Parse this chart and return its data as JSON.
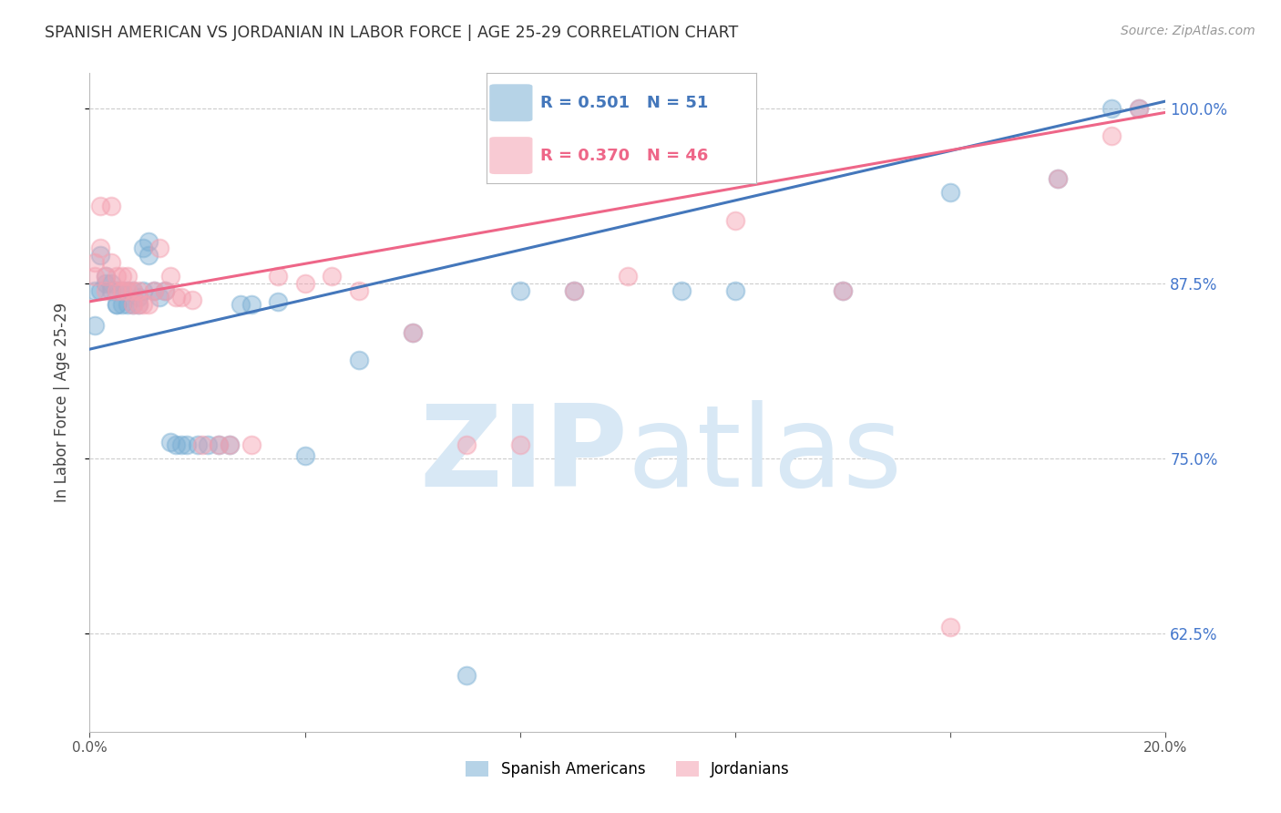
{
  "title": "SPANISH AMERICAN VS JORDANIAN IN LABOR FORCE | AGE 25-29 CORRELATION CHART",
  "source": "Source: ZipAtlas.com",
  "ylabel": "In Labor Force | Age 25-29",
  "xlim": [
    0.0,
    0.2
  ],
  "ylim": [
    0.555,
    1.025
  ],
  "ytick_positions": [
    0.625,
    0.75,
    0.875,
    1.0
  ],
  "yticklabels": [
    "62.5%",
    "75.0%",
    "87.5%",
    "100.0%"
  ],
  "blue_R": 0.501,
  "blue_N": 51,
  "pink_R": 0.37,
  "pink_N": 46,
  "blue_color": "#7BAFD4",
  "pink_color": "#F4A0B0",
  "blue_line_color": "#4477BB",
  "pink_line_color": "#EE6688",
  "watermark_color": "#D8E8F5",
  "legend_label_blue": "Spanish Americans",
  "legend_label_pink": "Jordanians",
  "blue_x": [
    0.001,
    0.001,
    0.002,
    0.002,
    0.003,
    0.003,
    0.004,
    0.004,
    0.005,
    0.005,
    0.005,
    0.006,
    0.006,
    0.007,
    0.007,
    0.008,
    0.008,
    0.009,
    0.009,
    0.01,
    0.01,
    0.011,
    0.011,
    0.012,
    0.013,
    0.014,
    0.015,
    0.016,
    0.017,
    0.018,
    0.02,
    0.022,
    0.024,
    0.026,
    0.028,
    0.03,
    0.035,
    0.04,
    0.05,
    0.06,
    0.07,
    0.08,
    0.09,
    0.1,
    0.11,
    0.12,
    0.14,
    0.16,
    0.18,
    0.19,
    0.195
  ],
  "blue_y": [
    0.845,
    0.87,
    0.87,
    0.895,
    0.875,
    0.88,
    0.87,
    0.875,
    0.86,
    0.87,
    0.86,
    0.87,
    0.86,
    0.87,
    0.86,
    0.87,
    0.86,
    0.86,
    0.865,
    0.87,
    0.9,
    0.905,
    0.895,
    0.87,
    0.865,
    0.87,
    0.762,
    0.76,
    0.76,
    0.76,
    0.76,
    0.76,
    0.76,
    0.76,
    0.86,
    0.86,
    0.862,
    0.752,
    0.82,
    0.84,
    0.595,
    0.87,
    0.87,
    1.0,
    0.87,
    0.87,
    0.87,
    0.94,
    0.95,
    1.0,
    1.0
  ],
  "pink_x": [
    0.001,
    0.001,
    0.002,
    0.002,
    0.003,
    0.003,
    0.004,
    0.004,
    0.005,
    0.005,
    0.006,
    0.006,
    0.007,
    0.007,
    0.008,
    0.008,
    0.009,
    0.009,
    0.01,
    0.011,
    0.012,
    0.013,
    0.014,
    0.015,
    0.016,
    0.017,
    0.019,
    0.021,
    0.024,
    0.026,
    0.03,
    0.035,
    0.04,
    0.045,
    0.05,
    0.06,
    0.07,
    0.08,
    0.09,
    0.1,
    0.12,
    0.14,
    0.16,
    0.18,
    0.19,
    0.195
  ],
  "pink_y": [
    0.88,
    0.89,
    0.9,
    0.93,
    0.87,
    0.88,
    0.89,
    0.93,
    0.87,
    0.88,
    0.87,
    0.88,
    0.87,
    0.88,
    0.86,
    0.87,
    0.86,
    0.87,
    0.86,
    0.86,
    0.87,
    0.9,
    0.87,
    0.88,
    0.865,
    0.865,
    0.863,
    0.76,
    0.76,
    0.76,
    0.76,
    0.88,
    0.875,
    0.88,
    0.87,
    0.84,
    0.76,
    0.76,
    0.87,
    0.88,
    0.92,
    0.87,
    0.63,
    0.95,
    0.98,
    1.0
  ]
}
